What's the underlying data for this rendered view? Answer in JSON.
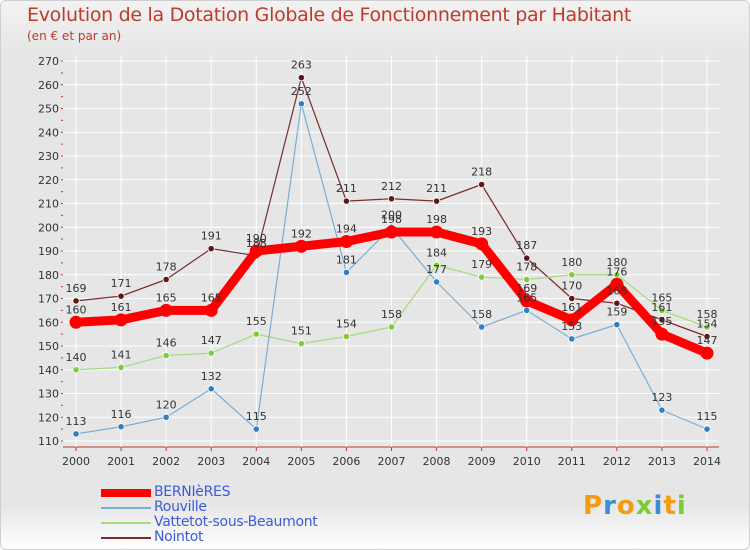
{
  "chart_data": {
    "type": "line",
    "title": "Evolution de la Dotation Globale de Fonctionnement par Habitant",
    "subtitle": "(en € et par an)",
    "xlabel": "",
    "ylabel": "",
    "ylim": [
      110,
      270
    ],
    "yticks": [
      110,
      120,
      130,
      140,
      150,
      160,
      170,
      180,
      190,
      200,
      210,
      220,
      230,
      240,
      250,
      260,
      270
    ],
    "x": [
      "2000",
      "2001",
      "2002",
      "2003",
      "2004",
      "2005",
      "2006",
      "2007",
      "2008",
      "2009",
      "2010",
      "2011",
      "2012",
      "2013",
      "2014"
    ],
    "series": [
      {
        "name": "BERNIèRES",
        "color": "#ff0000",
        "dot": "#ff0000",
        "width": 9,
        "values": [
          160,
          161,
          165,
          165,
          190,
          192,
          194,
          198,
          198,
          193,
          169,
          161,
          176,
          155,
          147
        ]
      },
      {
        "name": "Rouville",
        "color": "#7aaed6",
        "dot": "#2e7fc4",
        "width": 1.2,
        "values": [
          113,
          116,
          120,
          132,
          115,
          252,
          181,
          200,
          177,
          158,
          165,
          153,
          159,
          123,
          115
        ]
      },
      {
        "name": "Vattetot-sous-Beaumont",
        "color": "#a6dc7a",
        "dot": "#7ccc3a",
        "width": 1.2,
        "values": [
          140,
          141,
          146,
          147,
          155,
          151,
          154,
          158,
          184,
          179,
          178,
          180,
          180,
          165,
          158
        ]
      },
      {
        "name": "Nointot",
        "color": "#7a2e2e",
        "dot": "#5e1717",
        "width": 1.2,
        "values": [
          169,
          171,
          178,
          191,
          188,
          263,
          211,
          212,
          211,
          218,
          187,
          170,
          168,
          161,
          154
        ]
      }
    ],
    "data_labels": [
      {
        "series": "BERNIèRES",
        "values": [
          "160",
          "161",
          "165",
          "165",
          "190",
          "192",
          "194",
          "198",
          "198",
          "193",
          "169",
          "161",
          "176",
          "155",
          "147"
        ]
      },
      {
        "series": "Rouville",
        "values": [
          "113",
          "116",
          "120",
          "132",
          "115",
          "252",
          "181",
          "200",
          "177",
          "158",
          "165",
          "153",
          "159",
          "123",
          "115"
        ]
      },
      {
        "series": "Vattetot-sous-Beaumont",
        "values": [
          "140",
          "141",
          "146",
          "147",
          "155",
          "151",
          "154",
          "158",
          "184",
          "179",
          "178",
          "180",
          "180",
          "165",
          "158"
        ]
      },
      {
        "series": "Nointot",
        "values": [
          "169",
          "171",
          "178",
          "191",
          "188",
          "263",
          "211",
          "212",
          "211",
          "218",
          "187",
          "170",
          "168",
          "161",
          "154"
        ]
      }
    ],
    "legend_position": "bottom-left"
  },
  "logo": {
    "text": "Proxiti",
    "colors": [
      "#f39c12",
      "#3b8ed6",
      "#f39c12",
      "#7ccc3a",
      "#3b8ed6",
      "#f39c12",
      "#7ccc3a"
    ]
  }
}
